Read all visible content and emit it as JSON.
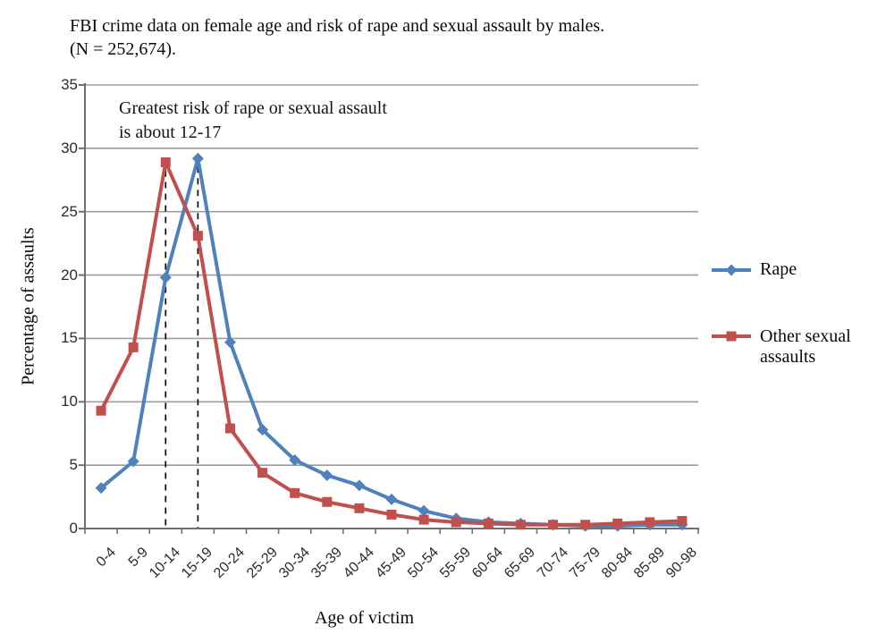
{
  "figure": {
    "title_line1": "FBI crime data on female age and risk of rape and sexual assault by males.",
    "title_line2": "(N = 252,674).",
    "annotation_line1": "Greatest risk of rape or sexual assault",
    "annotation_line2": "is about 12-17",
    "y_axis_title": "Percentage of assaults",
    "x_axis_title": "Age of victim"
  },
  "legend": {
    "position": "right",
    "items": [
      {
        "label": "Rape",
        "color": "#4F81BD",
        "marker": "diamond"
      },
      {
        "label": "Other sexual assaults",
        "color": "#C0504D",
        "marker": "square"
      }
    ]
  },
  "chart_data": {
    "type": "line",
    "title": "FBI crime data on female age and risk of rape and sexual assault by males. (N = 252,674).",
    "xlabel": "Age of victim",
    "ylabel": "Percentage of assaults",
    "categories": [
      "0-4",
      "5-9",
      "10-14",
      "15-19",
      "20-24",
      "25-29",
      "30-34",
      "35-39",
      "40-44",
      "45-49",
      "50-54",
      "55-59",
      "60-64",
      "65-69",
      "70-74",
      "75-79",
      "80-84",
      "85-89",
      "90-98"
    ],
    "series": [
      {
        "name": "Rape",
        "color": "#4F81BD",
        "marker": "diamond",
        "values": [
          3.2,
          5.3,
          19.8,
          29.2,
          14.7,
          7.8,
          5.4,
          4.2,
          3.4,
          2.3,
          1.4,
          0.8,
          0.5,
          0.4,
          0.3,
          0.2,
          0.2,
          0.3,
          0.3
        ]
      },
      {
        "name": "Other sexual assaults",
        "color": "#C0504D",
        "marker": "square",
        "values": [
          9.3,
          14.3,
          28.9,
          23.1,
          7.9,
          4.4,
          2.8,
          2.1,
          1.6,
          1.1,
          0.7,
          0.5,
          0.4,
          0.3,
          0.3,
          0.3,
          0.4,
          0.5,
          0.6
        ]
      }
    ],
    "ylim": [
      0,
      35
    ],
    "yticks": [
      0,
      5,
      10,
      15,
      20,
      25,
      30,
      35
    ],
    "grid": true,
    "gridline_color": "#9d9d9d",
    "axis_color": "#6f6f6f",
    "dashed_guides": {
      "categories": [
        "10-14",
        "15-19"
      ],
      "color": "#0d0d0d"
    },
    "legend_position": "right"
  }
}
